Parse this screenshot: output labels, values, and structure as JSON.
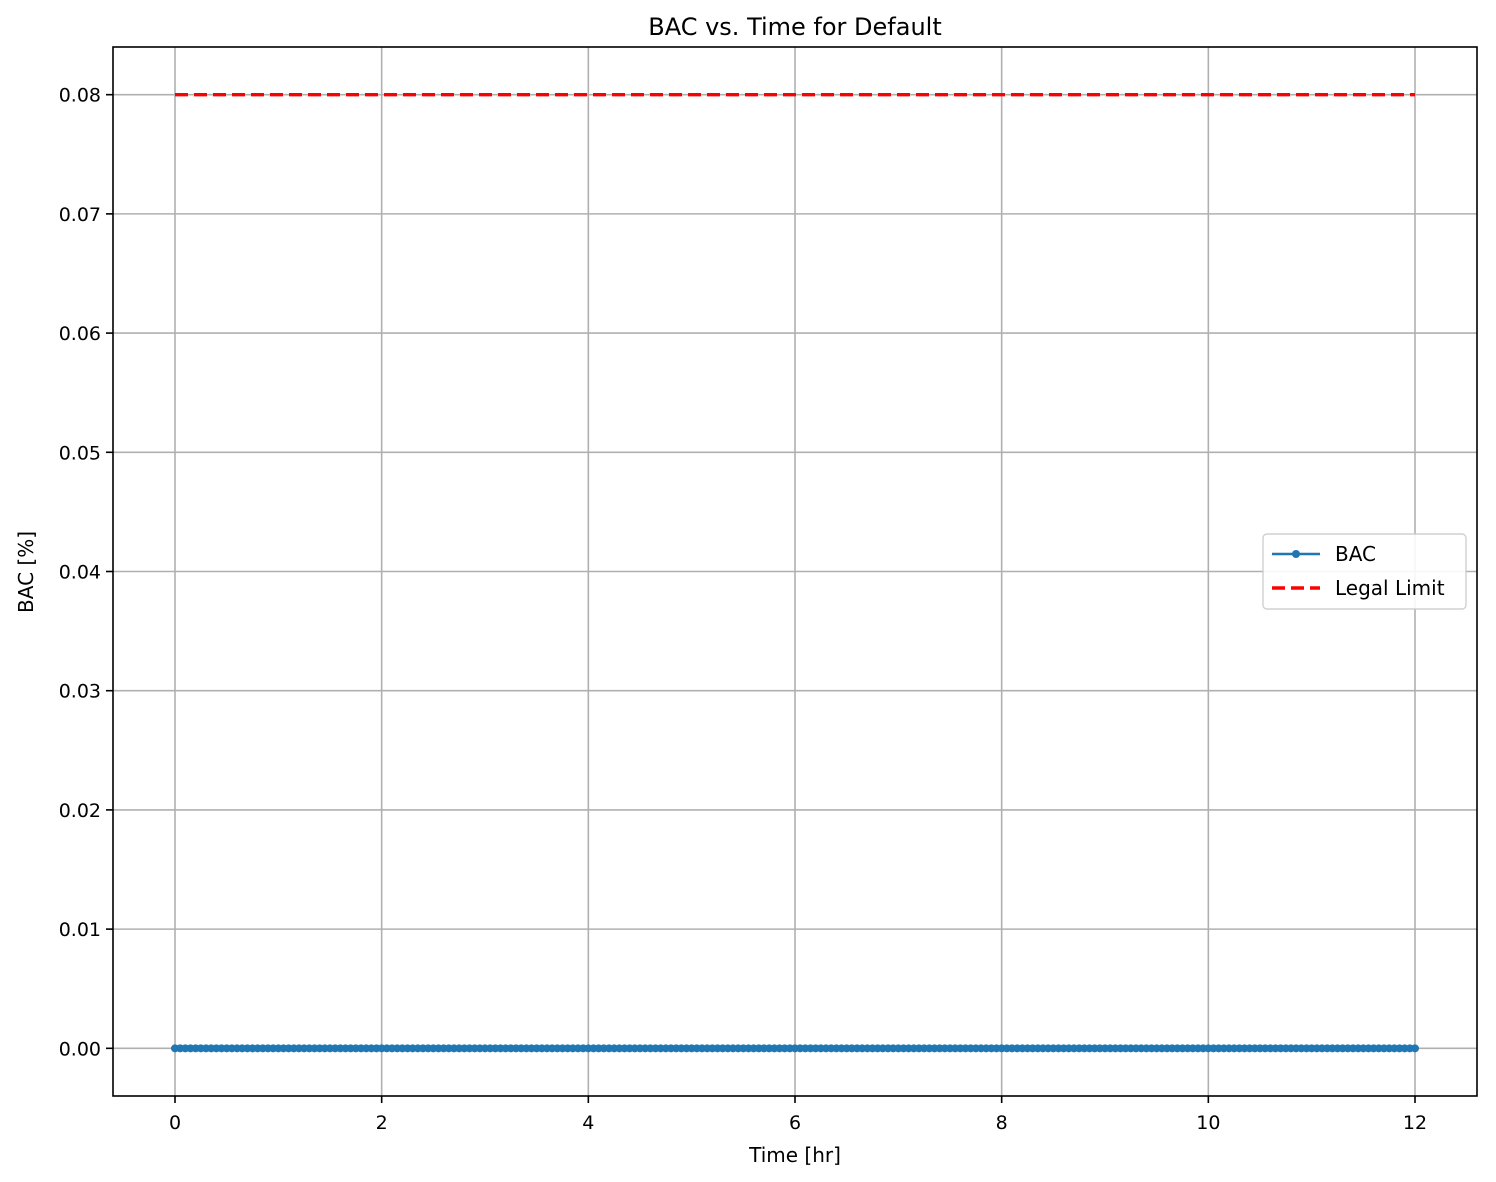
{
  "chart_data": {
    "type": "line",
    "title": "BAC vs. Time for Default",
    "xlabel": "Time [hr]",
    "ylabel": "BAC [%]",
    "xlim": [
      -0.6,
      12.6
    ],
    "ylim": [
      -0.004,
      0.084
    ],
    "x_ticks": [
      0,
      2,
      4,
      6,
      8,
      10,
      12
    ],
    "x_tick_labels": [
      "0",
      "2",
      "4",
      "6",
      "8",
      "10",
      "12"
    ],
    "y_ticks": [
      0.0,
      0.01,
      0.02,
      0.03,
      0.04,
      0.05,
      0.06,
      0.07,
      0.08
    ],
    "y_tick_labels": [
      "0.00",
      "0.01",
      "0.02",
      "0.03",
      "0.04",
      "0.05",
      "0.06",
      "0.07",
      "0.08"
    ],
    "grid": true,
    "legend_position": "center-right",
    "series": [
      {
        "name": "BAC",
        "style": "solid-with-dot-markers",
        "color": "#1f77b4",
        "x_start": 0,
        "x_end": 12,
        "x_step": 0.05,
        "y_constant": 0.0
      },
      {
        "name": "Legal Limit",
        "style": "dashed",
        "color": "#ff0000",
        "x": [
          0,
          12
        ],
        "y": [
          0.08,
          0.08
        ]
      }
    ]
  }
}
